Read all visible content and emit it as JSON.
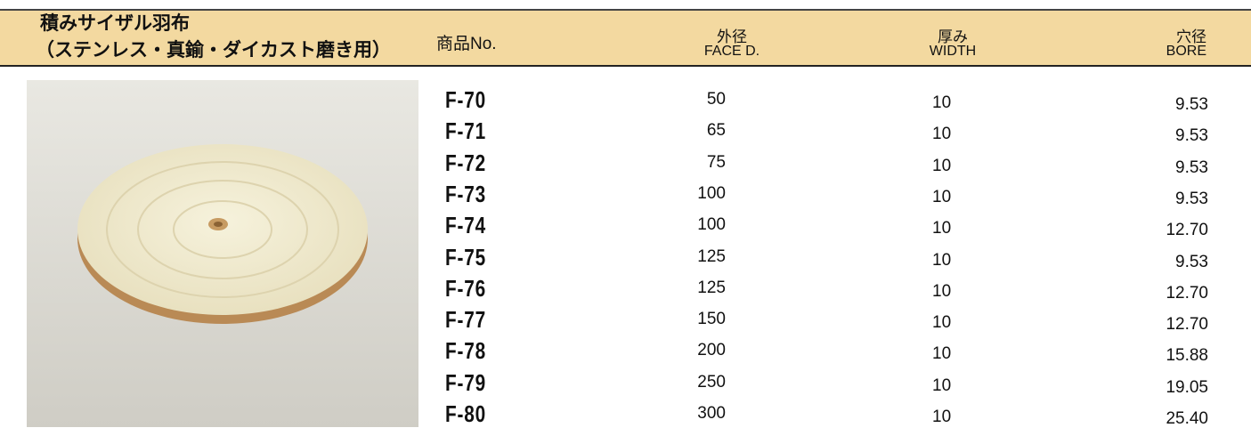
{
  "header": {
    "title_line1": "積みサイザル羽布",
    "title_line2": "（ステンレス・真鍮・ダイカスト磨き用）",
    "columns": [
      {
        "ja": "商品No."
      },
      {
        "ja": "外径",
        "en": "FACE D."
      },
      {
        "ja": "厚み",
        "en": "WIDTH"
      },
      {
        "ja": "穴径",
        "en": "BORE"
      }
    ]
  },
  "table": {
    "rows": [
      [
        "F-70",
        "50",
        "10",
        "9.53"
      ],
      [
        "F-71",
        "65",
        "10",
        "9.53"
      ],
      [
        "F-72",
        "75",
        "10",
        "9.53"
      ],
      [
        "F-73",
        "100",
        "10",
        "9.53"
      ],
      [
        "F-74",
        "100",
        "10",
        "12.70"
      ],
      [
        "F-75",
        "125",
        "10",
        "9.53"
      ],
      [
        "F-76",
        "125",
        "10",
        "12.70"
      ],
      [
        "F-77",
        "150",
        "10",
        "12.70"
      ],
      [
        "F-78",
        "200",
        "10",
        "15.88"
      ],
      [
        "F-79",
        "250",
        "10",
        "19.05"
      ],
      [
        "F-80",
        "300",
        "10",
        "25.40"
      ]
    ]
  }
}
